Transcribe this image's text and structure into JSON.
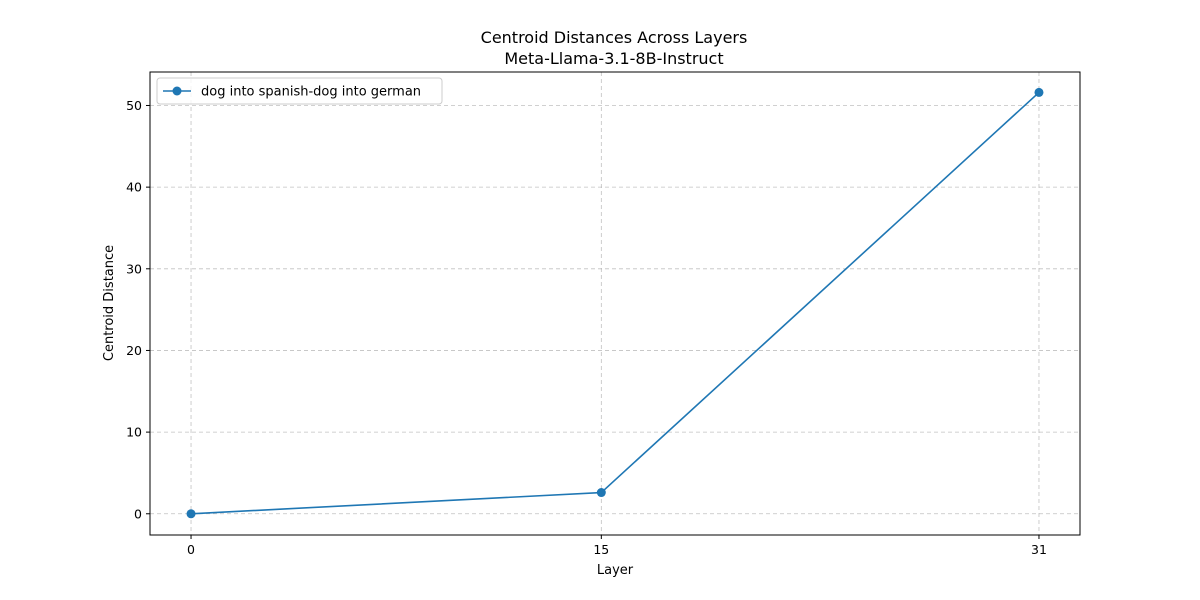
{
  "chart_data": {
    "type": "line",
    "title": "Centroid Distances Across Layers",
    "subtitle": "Meta-Llama-3.1-8B-Instruct",
    "xlabel": "Layer",
    "ylabel": "Centroid Distance",
    "x": [
      0,
      15,
      31
    ],
    "x_ticks": [
      "0",
      "15",
      "31"
    ],
    "y_ticks": [
      "0",
      "10",
      "20",
      "30",
      "40",
      "50"
    ],
    "xlim": [
      -1.5,
      32.5
    ],
    "ylim": [
      -2.6,
      54.1
    ],
    "grid": true,
    "legend_position": "top-left",
    "series": [
      {
        "name": "dog into spanish-dog into german",
        "values": [
          0.0,
          2.6,
          51.6
        ],
        "color": "#1f77b4",
        "marker": "circle"
      }
    ]
  }
}
